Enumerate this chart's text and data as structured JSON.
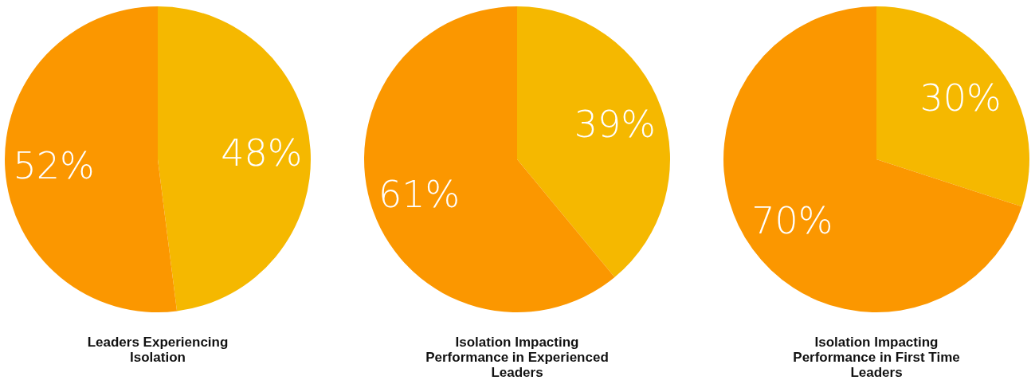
{
  "chart_data": [
    {
      "type": "pie",
      "title": "Leaders Experiencing Isolation",
      "categories": [
        null,
        null
      ],
      "values": [
        48,
        52
      ],
      "colors": [
        "#f5b800",
        "#fb9700"
      ],
      "value_labels": [
        "48%",
        "52%"
      ]
    },
    {
      "type": "pie",
      "title": "Isolation Impacting Performance in Experienced Leaders",
      "categories": [
        null,
        null
      ],
      "values": [
        39,
        61
      ],
      "colors": [
        "#f5b800",
        "#fb9700"
      ],
      "value_labels": [
        "39%",
        "61%"
      ]
    },
    {
      "type": "pie",
      "title": "Isolation Impacting Performance in First Time Leaders",
      "categories": [
        null,
        null
      ],
      "values": [
        30,
        70
      ],
      "colors": [
        "#f5b800",
        "#fb9700"
      ],
      "value_labels": [
        "30%",
        "70%"
      ]
    }
  ]
}
